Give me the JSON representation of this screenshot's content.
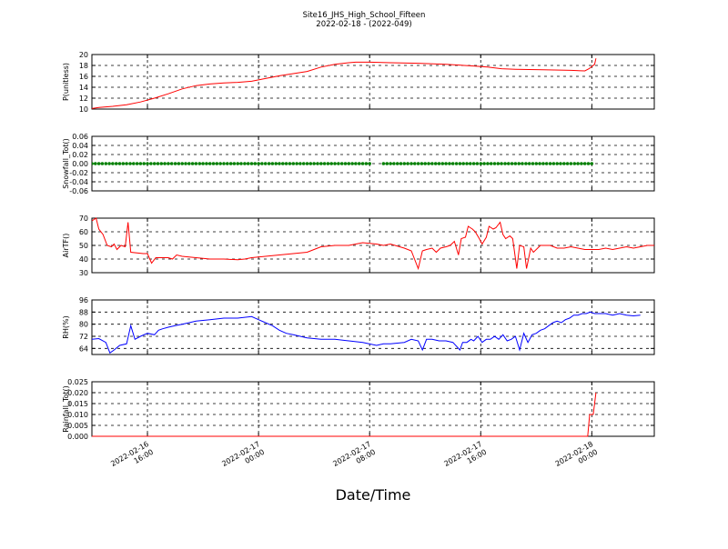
{
  "title": "Site16_JHS_High_School_Fifteen",
  "subtitle": "2022-02-18 - (2022-049)",
  "xlabel": "Date/Time",
  "x_ticks": [
    {
      "t": 15.5,
      "line1": "2022-02-16",
      "line2": "16:00"
    },
    {
      "t": 23.5,
      "line1": "2022-02-17",
      "line2": "00:00"
    },
    {
      "t": 31.5,
      "line1": "2022-02-17",
      "line2": "08:00"
    },
    {
      "t": 39.5,
      "line1": "2022-02-17",
      "line2": "16:00"
    },
    {
      "t": 47.5,
      "line1": "2022-02-18",
      "line2": "00:00"
    }
  ],
  "chart_data": [
    {
      "type": "line",
      "ylabel": "P(unitless)",
      "ylim": [
        10,
        20
      ],
      "yticks": [
        10,
        12,
        14,
        16,
        18,
        20
      ],
      "color": "#ff0000",
      "x_range_hours": [
        11.5,
        47.7
      ],
      "points": [
        [
          11.5,
          10.1
        ],
        [
          12,
          10.3
        ],
        [
          13,
          10.5
        ],
        [
          14,
          10.8
        ],
        [
          15,
          11.3
        ],
        [
          16,
          12
        ],
        [
          17,
          12.8
        ],
        [
          18,
          13.7
        ],
        [
          19,
          14.3
        ],
        [
          20,
          14.6
        ],
        [
          21,
          14.8
        ],
        [
          22,
          14.9
        ],
        [
          23,
          15.1
        ],
        [
          24,
          15.6
        ],
        [
          25,
          16.1
        ],
        [
          26,
          16.5
        ],
        [
          27,
          16.9
        ],
        [
          28,
          17.7
        ],
        [
          29,
          18.2
        ],
        [
          30,
          18.5
        ],
        [
          30.5,
          18.6
        ],
        [
          31.5,
          18.6
        ],
        [
          33,
          18.5
        ],
        [
          35,
          18.4
        ],
        [
          37,
          18.2
        ],
        [
          39,
          17.9
        ],
        [
          40,
          17.7
        ],
        [
          41,
          17.4
        ],
        [
          42,
          17.3
        ],
        [
          44,
          17.2
        ],
        [
          46,
          17.1
        ],
        [
          47,
          17.0
        ],
        [
          47.3,
          17.4
        ],
        [
          47.7,
          18.2
        ],
        [
          47.8,
          19.3
        ]
      ]
    },
    {
      "type": "scatter",
      "ylabel": "Snowfall_Tot()",
      "ylim": [
        -0.06,
        0.06
      ],
      "yticks": [
        -0.06,
        -0.04,
        -0.02,
        0.0,
        0.02,
        0.04,
        0.06
      ],
      "color": "#008000",
      "value": 0.0,
      "segments_hours": [
        [
          11.5,
          31.5
        ],
        [
          32.5,
          47.7
        ]
      ]
    },
    {
      "type": "line",
      "ylabel": "AirTF()",
      "ylim": [
        30,
        70
      ],
      "yticks": [
        30,
        40,
        50,
        60,
        70
      ],
      "color": "#ff0000",
      "points": [
        [
          11.5,
          68
        ],
        [
          11.8,
          70
        ],
        [
          12.0,
          62
        ],
        [
          12.3,
          58
        ],
        [
          12.6,
          50
        ],
        [
          12.9,
          49
        ],
        [
          13.1,
          51
        ],
        [
          13.3,
          47
        ],
        [
          13.6,
          50
        ],
        [
          13.9,
          49
        ],
        [
          14.1,
          67
        ],
        [
          14.3,
          45
        ],
        [
          15.2,
          44
        ],
        [
          15.5,
          44
        ],
        [
          15.8,
          37
        ],
        [
          16.1,
          41
        ],
        [
          17,
          41
        ],
        [
          17.3,
          40
        ],
        [
          17.6,
          43
        ],
        [
          18,
          42
        ],
        [
          19,
          41
        ],
        [
          20,
          40
        ],
        [
          21,
          40
        ],
        [
          22,
          39.5
        ],
        [
          22.5,
          40
        ],
        [
          23,
          41
        ],
        [
          24,
          42
        ],
        [
          25,
          43
        ],
        [
          26,
          44
        ],
        [
          27,
          45
        ],
        [
          27.5,
          47
        ],
        [
          28,
          49
        ],
        [
          29,
          50
        ],
        [
          30,
          50
        ],
        [
          31,
          52
        ],
        [
          32,
          51
        ],
        [
          32.5,
          50
        ],
        [
          33,
          51
        ],
        [
          34,
          48
        ],
        [
          34.5,
          46
        ],
        [
          35.0,
          33
        ],
        [
          35.3,
          46
        ],
        [
          35.6,
          47
        ],
        [
          36,
          48
        ],
        [
          36.3,
          45
        ],
        [
          36.6,
          48
        ],
        [
          37,
          49
        ],
        [
          37.3,
          50
        ],
        [
          37.6,
          53
        ],
        [
          37.9,
          43
        ],
        [
          38.1,
          55
        ],
        [
          38.4,
          56
        ],
        [
          38.6,
          64
        ],
        [
          38.9,
          62
        ],
        [
          39.1,
          60
        ],
        [
          39.4,
          55
        ],
        [
          39.6,
          51
        ],
        [
          39.9,
          56
        ],
        [
          40.1,
          64
        ],
        [
          40.4,
          62
        ],
        [
          40.6,
          63
        ],
        [
          40.9,
          67
        ],
        [
          41.1,
          58
        ],
        [
          41.3,
          55
        ],
        [
          41.6,
          57
        ],
        [
          41.8,
          55
        ],
        [
          42.1,
          33
        ],
        [
          42.3,
          50
        ],
        [
          42.6,
          49
        ],
        [
          42.8,
          33
        ],
        [
          43.1,
          48
        ],
        [
          43.3,
          45
        ],
        [
          43.6,
          48
        ],
        [
          43.8,
          50
        ],
        [
          44,
          50
        ],
        [
          44.5,
          50
        ],
        [
          45,
          48
        ],
        [
          45.5,
          48
        ],
        [
          46,
          49
        ],
        [
          46.5,
          48
        ],
        [
          47,
          47
        ],
        [
          47.5,
          47
        ],
        [
          48,
          47
        ],
        [
          48.5,
          48
        ],
        [
          49,
          47
        ],
        [
          49.5,
          48
        ],
        [
          50,
          49
        ],
        [
          50.5,
          48
        ],
        [
          51,
          49
        ],
        [
          51.5,
          50
        ],
        [
          52,
          50
        ]
      ]
    },
    {
      "type": "line",
      "ylabel": "RH(%)",
      "ylim": [
        60,
        96
      ],
      "yticks": [
        64,
        72,
        80,
        88,
        96
      ],
      "color": "#0000ff",
      "points": [
        [
          11.5,
          70
        ],
        [
          12,
          70.5
        ],
        [
          12.5,
          68
        ],
        [
          12.8,
          61
        ],
        [
          13.1,
          63
        ],
        [
          13.5,
          66
        ],
        [
          14,
          67
        ],
        [
          14.3,
          79
        ],
        [
          14.6,
          70
        ],
        [
          15,
          72
        ],
        [
          15.5,
          74
        ],
        [
          16,
          73
        ],
        [
          16.3,
          76
        ],
        [
          16.6,
          77
        ],
        [
          17,
          78
        ],
        [
          17.5,
          79
        ],
        [
          18,
          80
        ],
        [
          19,
          82
        ],
        [
          20,
          83
        ],
        [
          21,
          84
        ],
        [
          22,
          84
        ],
        [
          23,
          85
        ],
        [
          23.5,
          83
        ],
        [
          24,
          81
        ],
        [
          24.5,
          79
        ],
        [
          25,
          76
        ],
        [
          25.5,
          74
        ],
        [
          26,
          73
        ],
        [
          27,
          71
        ],
        [
          28,
          70
        ],
        [
          29,
          70
        ],
        [
          30,
          69
        ],
        [
          31,
          68
        ],
        [
          32,
          66
        ],
        [
          32.5,
          67
        ],
        [
          33,
          67
        ],
        [
          34,
          68
        ],
        [
          34.5,
          70
        ],
        [
          35,
          69
        ],
        [
          35.3,
          63
        ],
        [
          35.6,
          70
        ],
        [
          36,
          70
        ],
        [
          36.5,
          69
        ],
        [
          37,
          69
        ],
        [
          37.5,
          68
        ],
        [
          38,
          63
        ],
        [
          38.2,
          68
        ],
        [
          38.5,
          68
        ],
        [
          38.8,
          70
        ],
        [
          39,
          69
        ],
        [
          39.3,
          72
        ],
        [
          39.6,
          68
        ],
        [
          39.9,
          70
        ],
        [
          40.2,
          70
        ],
        [
          40.5,
          72
        ],
        [
          40.8,
          70
        ],
        [
          41.1,
          73
        ],
        [
          41.4,
          69
        ],
        [
          41.7,
          70
        ],
        [
          42,
          72
        ],
        [
          42.3,
          63
        ],
        [
          42.6,
          74
        ],
        [
          42.9,
          68
        ],
        [
          43.2,
          73
        ],
        [
          43.5,
          74
        ],
        [
          43.8,
          76
        ],
        [
          44.1,
          77
        ],
        [
          44.4,
          79
        ],
        [
          44.7,
          81
        ],
        [
          45,
          82
        ],
        [
          45.3,
          81
        ],
        [
          45.6,
          83
        ],
        [
          45.9,
          84
        ],
        [
          46.2,
          86
        ],
        [
          46.5,
          86
        ],
        [
          46.8,
          87
        ],
        [
          47.1,
          87
        ],
        [
          47.4,
          88
        ],
        [
          47.7,
          87
        ],
        [
          48,
          87
        ],
        [
          48.5,
          87
        ],
        [
          49,
          86
        ],
        [
          49.5,
          87
        ],
        [
          50,
          86
        ],
        [
          50.5,
          85.5
        ],
        [
          51,
          86
        ]
      ]
    },
    {
      "type": "line",
      "ylabel": "Rainfall_Tot()",
      "ylim": [
        0.0,
        0.025
      ],
      "yticks": [
        0.0,
        0.005,
        0.01,
        0.015,
        0.02,
        0.025
      ],
      "color": "#ff0000",
      "points": [
        [
          11.5,
          0
        ],
        [
          47.2,
          0
        ],
        [
          47.35,
          0.01
        ],
        [
          47.55,
          0.01
        ],
        [
          47.6,
          0.01
        ],
        [
          47.8,
          0.02
        ]
      ]
    }
  ]
}
